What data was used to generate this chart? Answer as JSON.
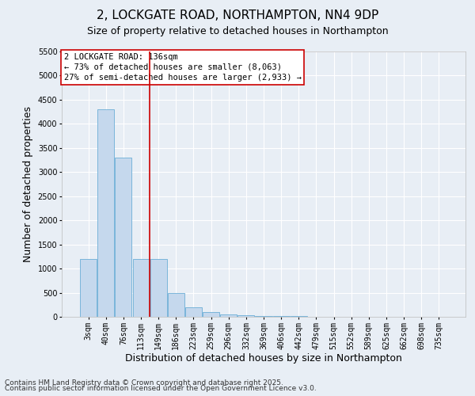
{
  "title1": "2, LOCKGATE ROAD, NORTHAMPTON, NN4 9DP",
  "title2": "Size of property relative to detached houses in Northampton",
  "xlabel": "Distribution of detached houses by size in Northampton",
  "ylabel": "Number of detached properties",
  "categories": [
    "3sqm",
    "40sqm",
    "76sqm",
    "113sqm",
    "149sqm",
    "186sqm",
    "223sqm",
    "259sqm",
    "296sqm",
    "332sqm",
    "369sqm",
    "406sqm",
    "442sqm",
    "479sqm",
    "515sqm",
    "552sqm",
    "589sqm",
    "625sqm",
    "662sqm",
    "698sqm",
    "735sqm"
  ],
  "bar_heights": [
    1200,
    4300,
    3300,
    1200,
    1200,
    500,
    200,
    100,
    50,
    30,
    20,
    15,
    10,
    8,
    5,
    3,
    2,
    2,
    1,
    1,
    1
  ],
  "bar_color": "#c5d8ed",
  "bar_edge_color": "#6baed6",
  "background_color": "#e8eef5",
  "grid_color": "#ffffff",
  "vline_x": 3.5,
  "vline_color": "#cc0000",
  "ylim": [
    0,
    5500
  ],
  "yticks": [
    0,
    500,
    1000,
    1500,
    2000,
    2500,
    3000,
    3500,
    4000,
    4500,
    5000,
    5500
  ],
  "annotation_line1": "2 LOCKGATE ROAD: 136sqm",
  "annotation_line2": "← 73% of detached houses are smaller (8,063)",
  "annotation_line3": "27% of semi-detached houses are larger (2,933) →",
  "annotation_box_color": "#ffffff",
  "annotation_border_color": "#cc0000",
  "footer1": "Contains HM Land Registry data © Crown copyright and database right 2025.",
  "footer2": "Contains public sector information licensed under the Open Government Licence v3.0.",
  "title1_fontsize": 11,
  "title2_fontsize": 9,
  "axis_label_fontsize": 9,
  "tick_fontsize": 7,
  "annotation_fontsize": 7.5,
  "footer_fontsize": 6.5
}
